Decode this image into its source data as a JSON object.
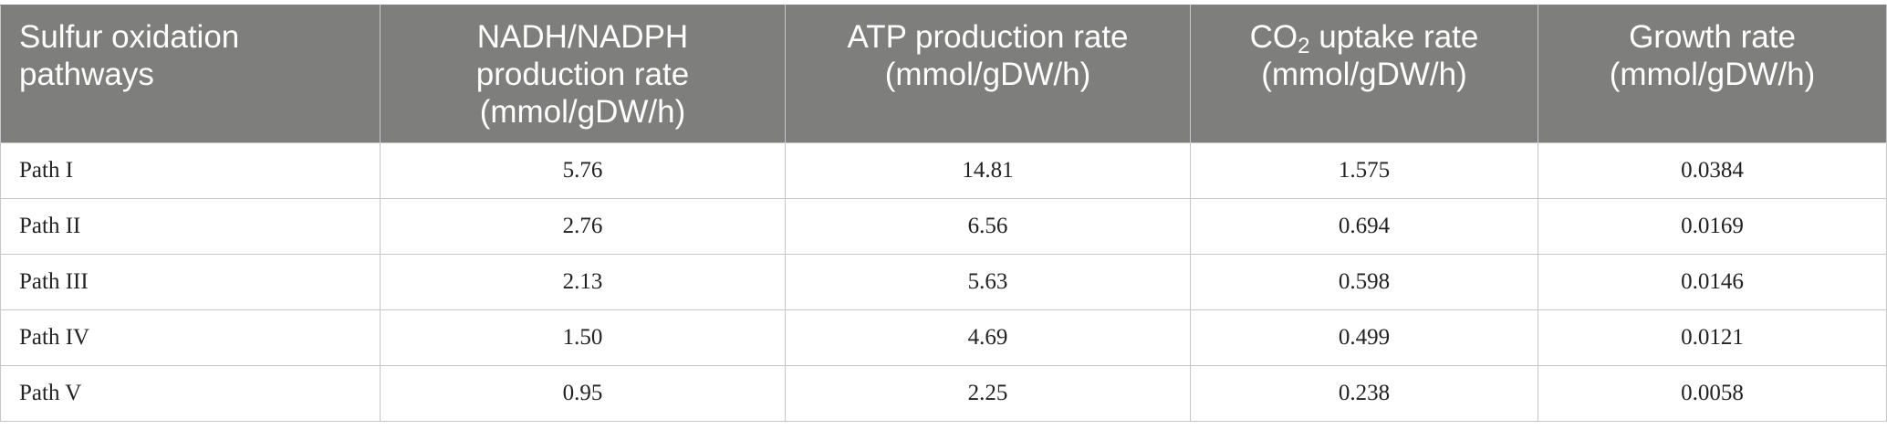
{
  "table": {
    "headers": [
      {
        "lines": [
          "Sulfur oxidation",
          "pathways"
        ]
      },
      {
        "lines": [
          "NADH/NADPH",
          "production rate",
          "(mmol/gDW/h)"
        ]
      },
      {
        "lines": [
          "ATP production rate",
          "(mmol/gDW/h)"
        ]
      },
      {
        "pre": "CO",
        "sub": "2",
        "post": " uptake rate",
        "line2": "(mmol/gDW/h)"
      },
      {
        "lines": [
          "Growth rate",
          "(mmol/gDW/h)"
        ]
      }
    ],
    "rows": [
      [
        "Path I",
        "5.76",
        "14.81",
        "1.575",
        "0.0384"
      ],
      [
        "Path II",
        "2.76",
        "6.56",
        "0.694",
        "0.0169"
      ],
      [
        "Path III",
        "2.13",
        "5.63",
        "0.598",
        "0.0146"
      ],
      [
        "Path IV",
        "1.50",
        "4.69",
        "0.499",
        "0.0121"
      ],
      [
        "Path V",
        "0.95",
        "2.25",
        "0.238",
        "0.0058"
      ]
    ]
  }
}
